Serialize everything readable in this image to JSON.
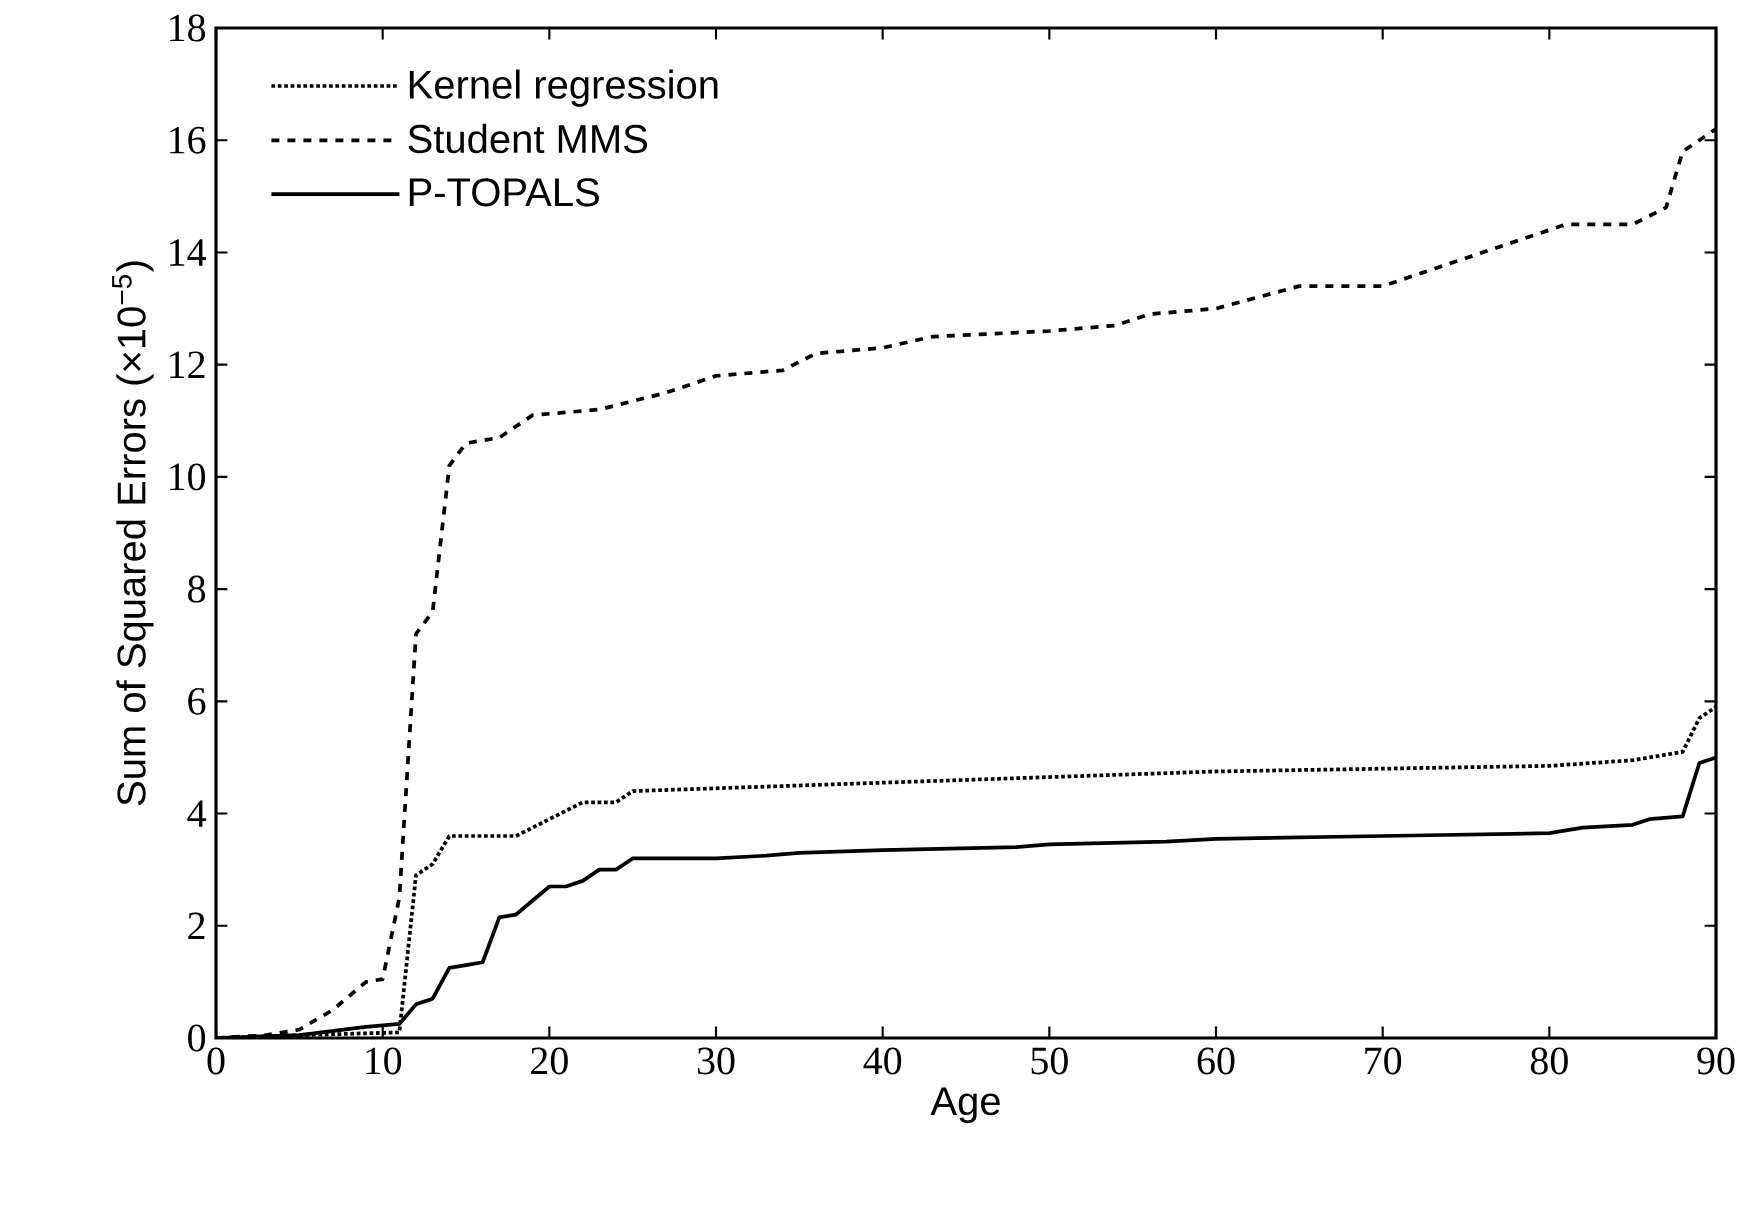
{
  "chart_data": {
    "type": "line",
    "xlabel": "Age",
    "ylabel": "Sum of Squared Errors (×10$^{−5}$)",
    "xlim": [
      0,
      90
    ],
    "ylim": [
      0,
      18
    ],
    "xticks": [
      0,
      10,
      20,
      30,
      40,
      50,
      60,
      70,
      80,
      90
    ],
    "yticks": [
      0,
      2,
      4,
      6,
      8,
      10,
      12,
      14,
      16,
      18
    ],
    "legend": "top left",
    "series": [
      {
        "name": "Kernel regression",
        "color": "#000000",
        "line_style": "dotted",
        "x": [
          0,
          5,
          11,
          12,
          13,
          14,
          18,
          20,
          22,
          24,
          25,
          30,
          40,
          50,
          60,
          70,
          80,
          85,
          88,
          89,
          90
        ],
        "values": [
          0,
          0.05,
          0.1,
          2.9,
          3.1,
          3.6,
          3.6,
          3.9,
          4.2,
          4.2,
          4.4,
          4.45,
          4.55,
          4.65,
          4.75,
          4.8,
          4.85,
          4.95,
          5.1,
          5.7,
          5.9
        ]
      },
      {
        "name": "Student MMS",
        "color": "#000000",
        "line_style": "dashed",
        "x": [
          0,
          3,
          5,
          7,
          9,
          10,
          11,
          12,
          13,
          14,
          15,
          17,
          19,
          23,
          27,
          30,
          34,
          36,
          40,
          43,
          50,
          54,
          56,
          60,
          65,
          70,
          72,
          75,
          78,
          81,
          85,
          87,
          88,
          90
        ],
        "values": [
          0,
          0.05,
          0.15,
          0.5,
          1.0,
          1.05,
          2.5,
          7.2,
          7.6,
          10.2,
          10.6,
          10.7,
          11.1,
          11.2,
          11.5,
          11.8,
          11.9,
          12.2,
          12.3,
          12.5,
          12.6,
          12.7,
          12.9,
          13.0,
          13.4,
          13.4,
          13.6,
          13.9,
          14.2,
          14.5,
          14.5,
          14.8,
          15.8,
          16.2
        ]
      },
      {
        "name": "P-TOPALS",
        "color": "#000000",
        "line_style": "solid",
        "x": [
          0,
          5,
          9,
          11,
          12,
          13,
          14,
          15,
          16,
          17,
          18,
          20,
          21,
          22,
          23,
          24,
          25,
          30,
          33,
          35,
          40,
          48,
          50,
          57,
          60,
          70,
          80,
          82,
          85,
          86,
          88,
          89,
          90
        ],
        "values": [
          0,
          0.05,
          0.2,
          0.25,
          0.6,
          0.7,
          1.25,
          1.3,
          1.35,
          2.15,
          2.2,
          2.7,
          2.7,
          2.8,
          3.0,
          3.0,
          3.2,
          3.2,
          3.25,
          3.3,
          3.35,
          3.4,
          3.45,
          3.5,
          3.55,
          3.6,
          3.65,
          3.75,
          3.8,
          3.9,
          3.95,
          4.9,
          5.0
        ]
      }
    ]
  }
}
